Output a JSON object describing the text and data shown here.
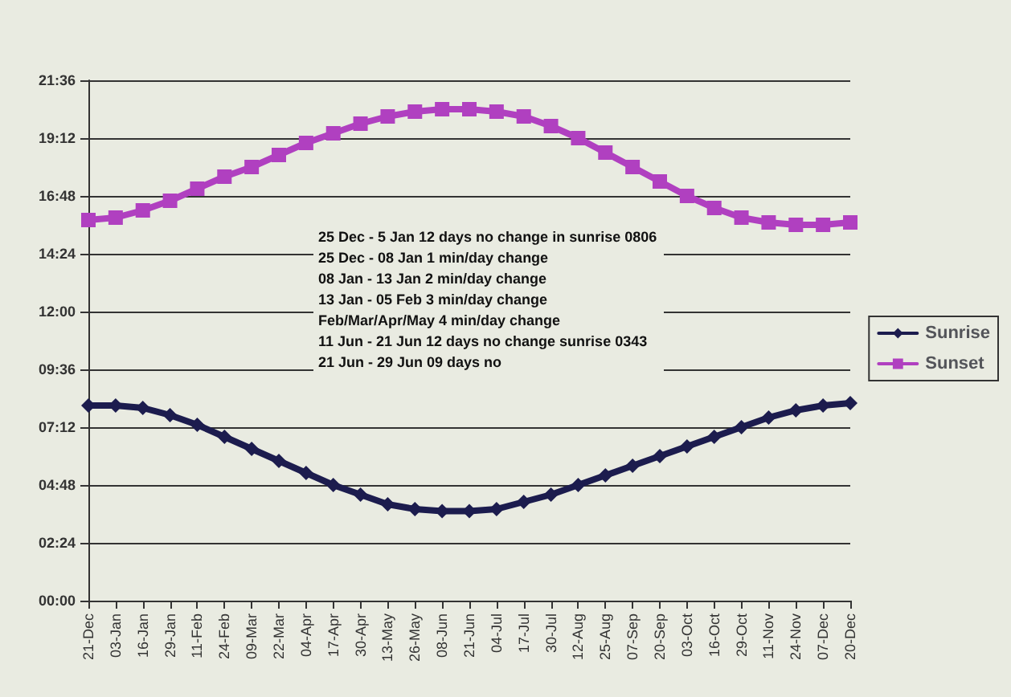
{
  "chart_data": {
    "type": "line",
    "categories": [
      "21-Dec",
      "03-Jan",
      "16-Jan",
      "29-Jan",
      "11-Feb",
      "24-Feb",
      "09-Mar",
      "22-Mar",
      "04-Apr",
      "17-Apr",
      "30-Apr",
      "13-May",
      "26-May",
      "08-Jun",
      "21-Jun",
      "04-Jul",
      "17-Jul",
      "30-Jul",
      "12-Aug",
      "25-Aug",
      "07-Sep",
      "20-Sep",
      "03-Oct",
      "16-Oct",
      "29-Oct",
      "11-Nov",
      "24-Nov",
      "07-Dec",
      "20-Dec"
    ],
    "series": [
      {
        "name": "Sunrise",
        "color": "#1c1c4e",
        "marker": "diamond",
        "values": [
          8.1,
          8.1,
          8.0,
          7.7,
          7.3,
          6.8,
          6.3,
          5.8,
          5.3,
          4.8,
          4.4,
          4.0,
          3.8,
          3.72,
          3.72,
          3.8,
          4.1,
          4.4,
          4.8,
          5.2,
          5.6,
          6.0,
          6.4,
          6.8,
          7.2,
          7.6,
          7.9,
          8.1,
          8.2
        ]
      },
      {
        "name": "Sunset",
        "color": "#b040c0",
        "marker": "square",
        "values": [
          15.8,
          15.9,
          16.2,
          16.6,
          17.1,
          17.6,
          18.0,
          18.5,
          19.0,
          19.4,
          19.8,
          20.1,
          20.3,
          20.4,
          20.4,
          20.3,
          20.1,
          19.7,
          19.2,
          18.6,
          18.0,
          17.4,
          16.8,
          16.3,
          15.9,
          15.7,
          15.6,
          15.6,
          15.7
        ]
      }
    ],
    "ylim": [
      0,
      21.6
    ],
    "yticks": [
      {
        "value": 0,
        "label": "00:00"
      },
      {
        "value": 2.4,
        "label": "02:24"
      },
      {
        "value": 4.8,
        "label": "04:48"
      },
      {
        "value": 7.2,
        "label": "07:12"
      },
      {
        "value": 9.6,
        "label": "09:36"
      },
      {
        "value": 12,
        "label": "12:00"
      },
      {
        "value": 14.4,
        "label": "14:24"
      },
      {
        "value": 16.8,
        "label": "16:48"
      },
      {
        "value": 19.2,
        "label": "19:12"
      },
      {
        "value": 21.6,
        "label": "21:36"
      }
    ],
    "grid": "y",
    "legend": "right",
    "annotations": [
      "25 Dec - 5 Jan 12 days no change in sunrise 0806",
      "25 Dec - 08 Jan 1 min/day change",
      "08 Jan - 13 Jan 2 min/day change",
      "13 Jan - 05 Feb 3 min/day change",
      "Feb/Mar/Apr/May 4 min/day change",
      "11 Jun - 21 Jun 12 days no change sunrise 0343",
      "21 Jun - 29 Jun 09 days no"
    ]
  }
}
